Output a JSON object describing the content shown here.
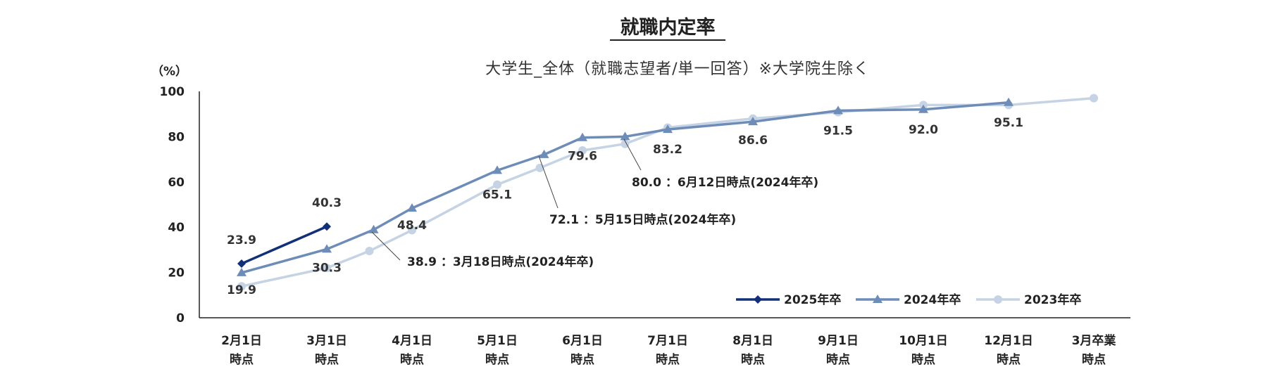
{
  "chart_data": {
    "type": "line",
    "title": "就職内定率",
    "subtitle": "大学生_全体（就職志望者/単一回答）※大学院生除く",
    "ylabel": "（%）",
    "ylim": [
      0,
      100
    ],
    "yticks": [
      0,
      20,
      40,
      60,
      80,
      100
    ],
    "categories": [
      [
        "2月1日",
        "時点"
      ],
      [
        "3月1日",
        "時点"
      ],
      [
        "4月1日",
        "時点"
      ],
      [
        "5月1日",
        "時点"
      ],
      [
        "6月1日",
        "時点"
      ],
      [
        "7月1日",
        "時点"
      ],
      [
        "8月1日",
        "時点"
      ],
      [
        "9月1日",
        "時点"
      ],
      [
        "10月1日",
        "時点"
      ],
      [
        "12月1日",
        "時点"
      ],
      [
        "3月卒業",
        "時点"
      ]
    ],
    "series": [
      {
        "name": "2025年卒",
        "color": "#12307a",
        "marker": "diamond",
        "points": [
          [
            0,
            23.9
          ],
          [
            1,
            40.3
          ]
        ],
        "labels": [
          "23.9",
          "40.3"
        ]
      },
      {
        "name": "2024年卒",
        "color": "#6e8cb8",
        "marker": "triangle",
        "points": [
          [
            0,
            19.9
          ],
          [
            1,
            30.3
          ],
          [
            1.55,
            38.9
          ],
          [
            2,
            48.4
          ],
          [
            3,
            65.1
          ],
          [
            3.55,
            72.1
          ],
          [
            4,
            79.6
          ],
          [
            4.5,
            80.0
          ],
          [
            5,
            83.2
          ],
          [
            6,
            86.6
          ],
          [
            7,
            91.5
          ],
          [
            8,
            92.0
          ],
          [
            9,
            95.1
          ]
        ],
        "labels": [
          "19.9",
          "30.3",
          "48.4",
          "65.1",
          "79.6",
          "83.2",
          "86.6",
          "91.5",
          "92.0",
          "95.1"
        ]
      },
      {
        "name": "2023年卒",
        "color": "#c5d3e4",
        "marker": "circle",
        "points": [
          [
            0,
            13.9
          ],
          [
            1,
            22.0
          ],
          [
            1.5,
            29.5
          ],
          [
            2,
            38.7
          ],
          [
            3,
            58.8
          ],
          [
            3.5,
            66.2
          ],
          [
            4,
            73.9
          ],
          [
            4.5,
            76.8
          ],
          [
            5,
            84.0
          ],
          [
            6,
            88.0
          ],
          [
            7,
            90.8
          ],
          [
            8,
            94.0
          ],
          [
            9,
            94.0
          ],
          [
            10,
            97.0
          ]
        ]
      }
    ],
    "annotations": [
      "38.9 ：3月18日時点(2024年卒)",
      "72.1 ：5月15日時点(2024年卒)",
      "80.0 ：6月12日時点(2024年卒)"
    ],
    "legend_position": "bottom-right",
    "grid": false
  }
}
